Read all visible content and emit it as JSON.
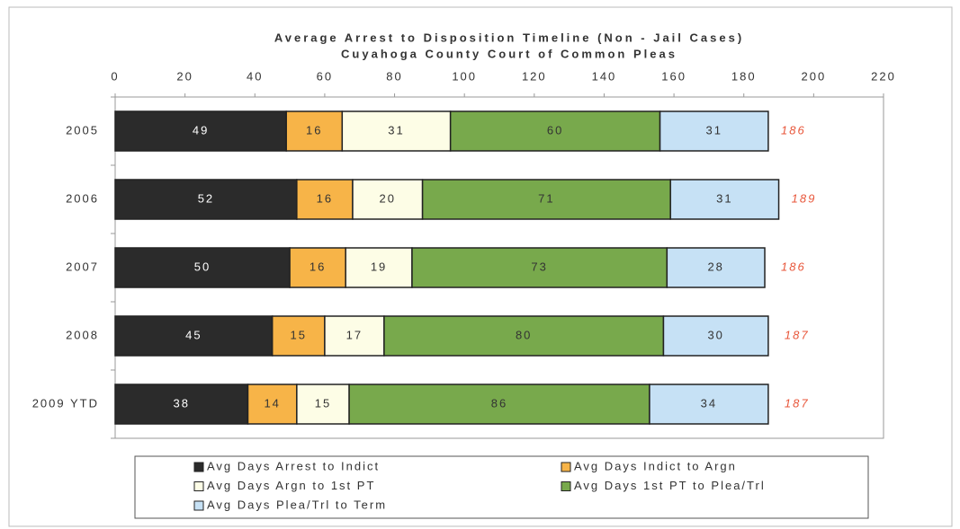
{
  "chart_data": {
    "type": "stacked_barh",
    "title": "Average Arrest to Disposition Timeline (Non - Jail Cases)",
    "subtitle": "Cuyahoga County Court of Common Pleas",
    "categories": [
      "2005",
      "2006",
      "2007",
      "2008",
      "2009 YTD"
    ],
    "series": [
      {
        "name": "Avg Days Arrest to Indict",
        "color": "#2b2b2b",
        "values": [
          49,
          52,
          50,
          45,
          38
        ]
      },
      {
        "name": "Avg Days Indict to Argn",
        "color": "#f7b448",
        "values": [
          16,
          16,
          16,
          15,
          14
        ]
      },
      {
        "name": "Avg Days Argn to 1st PT",
        "color": "#fdfde6",
        "values": [
          31,
          20,
          19,
          17,
          15
        ]
      },
      {
        "name": "Avg Days 1st PT to Plea/Trl",
        "color": "#78a94c",
        "values": [
          60,
          71,
          73,
          80,
          86
        ]
      },
      {
        "name": "Avg Days Plea/Trl to Term",
        "color": "#c6e1f5",
        "values": [
          31,
          31,
          28,
          30,
          34
        ]
      }
    ],
    "totals": [
      186,
      189,
      186,
      187,
      187
    ],
    "totals_color": "#e8563a",
    "xlim": [
      0,
      220
    ],
    "xticks": [
      0,
      20,
      40,
      60,
      80,
      100,
      120,
      140,
      160,
      180,
      200,
      220
    ],
    "grid": false,
    "legend": "bottom"
  }
}
